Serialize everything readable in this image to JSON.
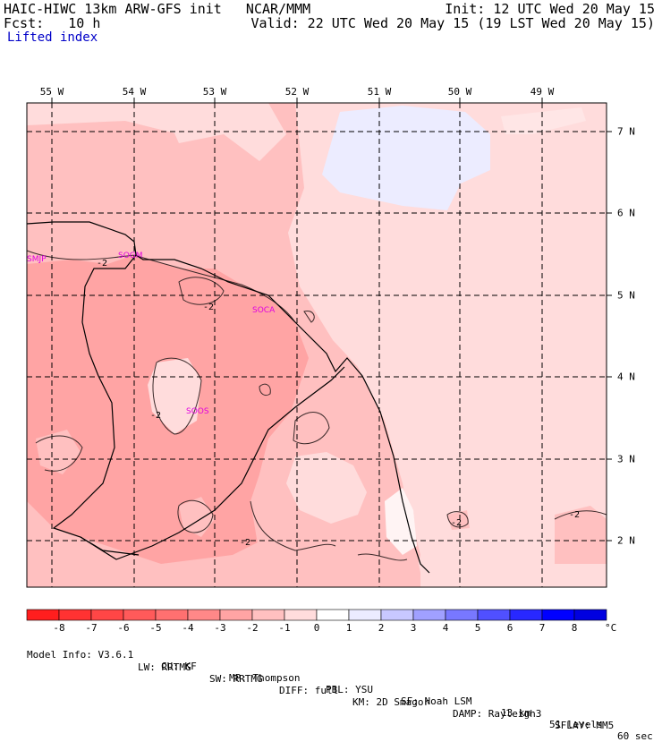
{
  "header": {
    "left_line1": "HAIC-HIWC 13km ARW-GFS init   NCAR/MMM",
    "left_line2": "Fcst:   10 h",
    "right_line1": "Init: 12 UTC Wed 20 May 15",
    "right_line2": "Valid: 22 UTC Wed 20 May 15 (19 LST Wed 20 May 15)",
    "field": "Lifted index"
  },
  "map": {
    "lon_labels": [
      "55 W",
      "54 W",
      "53 W",
      "52 W",
      "51 W",
      "50 W",
      "49 W"
    ],
    "lat_labels": [
      "7 N",
      "6 N",
      "5 N",
      "4 N",
      "3 N",
      "2 N"
    ],
    "stations": [
      "SMJP",
      "SOGM",
      "SOCA",
      "SOOS"
    ],
    "contour_label": "-2"
  },
  "colorbar": {
    "ticks": [
      "-8",
      "-7",
      "-6",
      "-5",
      "-4",
      "-3",
      "-2",
      "-1",
      "0",
      "1",
      "2",
      "3",
      "4",
      "5",
      "6",
      "7",
      "8"
    ],
    "unit": "°C",
    "colors": [
      "#ff1e1e",
      "#ff3232",
      "#ff4646",
      "#ff5a5a",
      "#ff7070",
      "#ff8888",
      "#ffa4a4",
      "#ffc0c0",
      "#ffdcdc",
      "#ffffff",
      "#ececff",
      "#c8c8ff",
      "#a0a0ff",
      "#7878ff",
      "#5050ff",
      "#2828ff",
      "#0000ff"
    ]
  },
  "model_info": {
    "row1": [
      "Model Info: V3.6.1",
      "CU: KF",
      "MP: Thompson",
      "PBL: YSU",
      "SF: Noah LSM",
      "13 km",
      "51 levels",
      "60 sec"
    ],
    "row2": [
      "LW: RRTMG",
      "SW: RRTMG",
      "DIFF: full",
      "KM: 2D Smagor",
      "DAMP: Rayleigh3",
      "SFLAY: MM5"
    ]
  }
}
